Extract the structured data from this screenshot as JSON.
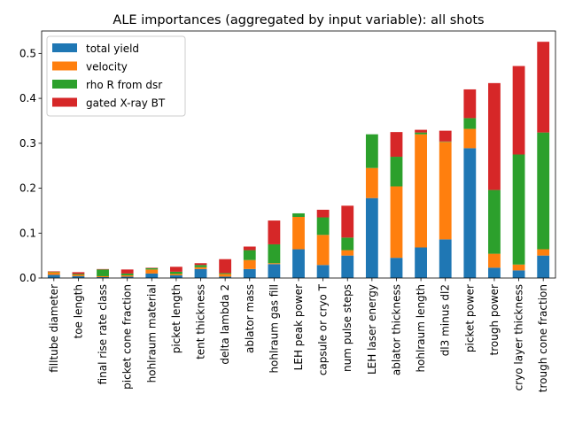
{
  "chart_data": {
    "type": "bar",
    "stacked": true,
    "title": "ALE importances (aggregated by input variable): all shots",
    "xlabel": "",
    "ylabel": "",
    "ylim": [
      0,
      0.55
    ],
    "yticks": [
      0.0,
      0.1,
      0.2,
      0.3,
      0.4,
      0.5
    ],
    "ytick_labels": [
      "0.0",
      "0.1",
      "0.2",
      "0.3",
      "0.4",
      "0.5"
    ],
    "legend_position": "top-left",
    "categories": [
      "filltube diameter",
      "toe length",
      "final rise rate class",
      "picket cone fraction",
      "hohlraum material",
      "picket length",
      "tent thickness",
      "delta lambda 2",
      "ablator mass",
      "hohlraum gas fill",
      "LEH peak power",
      "capsule or cryo T",
      "num pulse steps",
      "LEH laser energy",
      "ablator thickness",
      "hohlraum length",
      "dl3 minus dl2",
      "picket power",
      "trough power",
      "cryo layer thickness",
      "trough cone fraction"
    ],
    "series": [
      {
        "name": "total yield",
        "color": "#1f77b4",
        "values": [
          0.007,
          0.004,
          0.002,
          0.003,
          0.01,
          0.006,
          0.02,
          0.003,
          0.02,
          0.031,
          0.064,
          0.029,
          0.05,
          0.178,
          0.045,
          0.068,
          0.086,
          0.289,
          0.023,
          0.017,
          0.05
        ]
      },
      {
        "name": "velocity",
        "color": "#ff7f0e",
        "values": [
          0.006,
          0.003,
          0.002,
          0.003,
          0.009,
          0.003,
          0.004,
          0.006,
          0.02,
          0.002,
          0.072,
          0.067,
          0.012,
          0.067,
          0.159,
          0.252,
          0.217,
          0.043,
          0.031,
          0.013,
          0.014
        ]
      },
      {
        "name": "rho R from dsr",
        "color": "#2ca02c",
        "values": [
          0.001,
          0.002,
          0.015,
          0.004,
          0.003,
          0.005,
          0.005,
          0.002,
          0.022,
          0.042,
          0.008,
          0.039,
          0.028,
          0.075,
          0.066,
          0.004,
          0.001,
          0.024,
          0.142,
          0.245,
          0.26
        ]
      },
      {
        "name": "gated X-ray BT",
        "color": "#d62728",
        "values": [
          0.001,
          0.004,
          0.001,
          0.009,
          0.001,
          0.011,
          0.004,
          0.031,
          0.008,
          0.053,
          0.0,
          0.017,
          0.071,
          0.0,
          0.055,
          0.006,
          0.024,
          0.064,
          0.238,
          0.197,
          0.202
        ]
      }
    ]
  }
}
